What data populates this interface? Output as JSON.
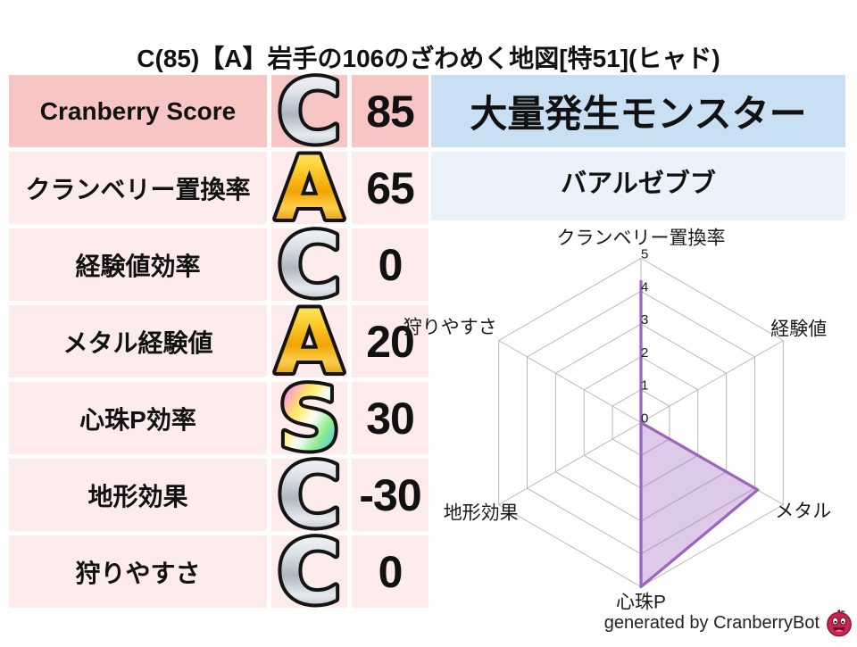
{
  "title": "C(85)【A】岩手の106のざわめく地図[特51](ヒャド)",
  "stats_table": {
    "rows": [
      {
        "label": "Cranberry Score",
        "grade": "C",
        "grade_style": "silver",
        "value": "85",
        "highlight": true
      },
      {
        "label": "クランベリー置換率",
        "grade": "A",
        "grade_style": "gold",
        "value": "65",
        "highlight": false
      },
      {
        "label": "経験値効率",
        "grade": "C",
        "grade_style": "silver",
        "value": "0",
        "highlight": false
      },
      {
        "label": "メタル経験値",
        "grade": "A",
        "grade_style": "gold",
        "value": "20",
        "highlight": false
      },
      {
        "label": "心珠P効率",
        "grade": "S",
        "grade_style": "rainbow",
        "value": "30",
        "highlight": false
      },
      {
        "label": "地形効果",
        "grade": "C",
        "grade_style": "silver",
        "value": "-30",
        "highlight": false
      },
      {
        "label": "狩りやすさ",
        "grade": "C",
        "grade_style": "silver",
        "value": "0",
        "highlight": false
      }
    ]
  },
  "monster_panel": {
    "header": "大量発生モンスター",
    "name": "バアルゼブブ"
  },
  "chart_data": {
    "type": "radar",
    "categories": [
      "クランベリー置換率",
      "経験値",
      "メタル",
      "心珠P",
      "地形効果",
      "狩りやすさ"
    ],
    "values": [
      4.3,
      0,
      4.1,
      5,
      0,
      0
    ],
    "ticks": [
      0,
      1,
      2,
      3,
      4,
      5
    ],
    "rmax": 5,
    "grid_shape": "hexagon",
    "grid_color": "#b8b8b8",
    "line_color": "#9d63bd",
    "fill_color": "rgba(157,99,189,0.35)"
  },
  "footer": {
    "credit": "generated by CranberryBot",
    "logo": "cranberry-mascot-icon"
  },
  "colors": {
    "row_highlight_bg": "#f6c5c4",
    "row_bg": "#fdeceb",
    "monster_header_bg": "#c9dff4",
    "monster_name_bg": "#eaf2fb",
    "grade_silver": "#b9c0cb",
    "grade_gold": "#f2b300",
    "grade_rainbow": "multicolor"
  }
}
